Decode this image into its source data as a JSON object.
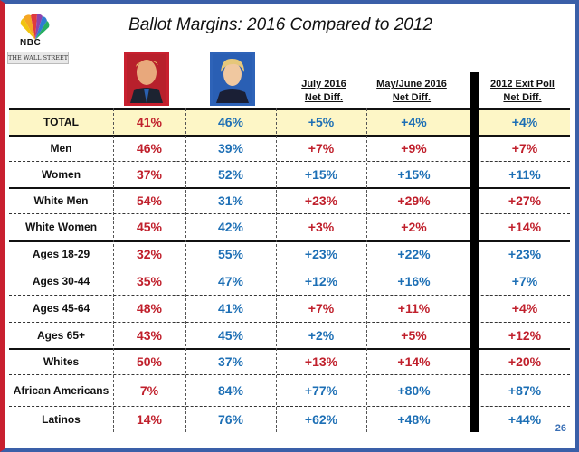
{
  "title": "Ballot Margins: 2016 Compared to 2012",
  "logos": {
    "nbc_text": "NBC",
    "wsj_text": "THE WALL STREET JOURNAL"
  },
  "candidates": [
    {
      "name": "Trump",
      "color": "#c8202f"
    },
    {
      "name": "Clinton",
      "color": "#2e63b8"
    }
  ],
  "page_number": "26",
  "chart_data": {
    "type": "table",
    "title": "Ballot Margins: 2016 Compared to 2012",
    "columns": [
      {
        "id": "trump",
        "label": ""
      },
      {
        "id": "clinton",
        "label": ""
      },
      {
        "id": "july",
        "label_line1": "July 2016",
        "label_line2": "Net Diff."
      },
      {
        "id": "mayjune",
        "label_line1": "May/June 2016",
        "label_line2": "Net Diff."
      },
      {
        "id": "exit2012",
        "label_line1": "2012 Exit Poll",
        "label_line2": "Net Diff."
      }
    ],
    "rows": [
      {
        "group": "TOTAL",
        "trump": "41%",
        "clinton": "46%",
        "july": "+5%",
        "mayjune": "+4%",
        "exit2012": "+4%",
        "july_party": "D",
        "mayjune_party": "D",
        "exit2012_party": "D"
      },
      {
        "group": "Men",
        "trump": "46%",
        "clinton": "39%",
        "july": "+7%",
        "mayjune": "+9%",
        "exit2012": "+7%",
        "july_party": "R",
        "mayjune_party": "R",
        "exit2012_party": "R"
      },
      {
        "group": "Women",
        "trump": "37%",
        "clinton": "52%",
        "july": "+15%",
        "mayjune": "+15%",
        "exit2012": "+11%",
        "july_party": "D",
        "mayjune_party": "D",
        "exit2012_party": "D"
      },
      {
        "group": "White Men",
        "trump": "54%",
        "clinton": "31%",
        "july": "+23%",
        "mayjune": "+29%",
        "exit2012": "+27%",
        "july_party": "R",
        "mayjune_party": "R",
        "exit2012_party": "R"
      },
      {
        "group": "White Women",
        "trump": "45%",
        "clinton": "42%",
        "july": "+3%",
        "mayjune": "+2%",
        "exit2012": "+14%",
        "july_party": "R",
        "mayjune_party": "R",
        "exit2012_party": "R"
      },
      {
        "group": "Ages 18-29",
        "trump": "32%",
        "clinton": "55%",
        "july": "+23%",
        "mayjune": "+22%",
        "exit2012": "+23%",
        "july_party": "D",
        "mayjune_party": "D",
        "exit2012_party": "D"
      },
      {
        "group": "Ages 30-44",
        "trump": "35%",
        "clinton": "47%",
        "july": "+12%",
        "mayjune": "+16%",
        "exit2012": "+7%",
        "july_party": "D",
        "mayjune_party": "D",
        "exit2012_party": "D"
      },
      {
        "group": "Ages 45-64",
        "trump": "48%",
        "clinton": "41%",
        "july": "+7%",
        "mayjune": "+11%",
        "exit2012": "+4%",
        "july_party": "R",
        "mayjune_party": "R",
        "exit2012_party": "R"
      },
      {
        "group": "Ages 65+",
        "trump": "43%",
        "clinton": "45%",
        "july": "+2%",
        "mayjune": "+5%",
        "exit2012": "+12%",
        "july_party": "D",
        "mayjune_party": "R",
        "exit2012_party": "R"
      },
      {
        "group": "Whites",
        "trump": "50%",
        "clinton": "37%",
        "july": "+13%",
        "mayjune": "+14%",
        "exit2012": "+20%",
        "july_party": "R",
        "mayjune_party": "R",
        "exit2012_party": "R"
      },
      {
        "group": "African Americans",
        "trump": "7%",
        "clinton": "84%",
        "july": "+77%",
        "mayjune": "+80%",
        "exit2012": "+87%",
        "july_party": "D",
        "mayjune_party": "D",
        "exit2012_party": "D"
      },
      {
        "group": "Latinos",
        "trump": "14%",
        "clinton": "76%",
        "july": "+62%",
        "mayjune": "+48%",
        "exit2012": "+44%",
        "july_party": "D",
        "mayjune_party": "D",
        "exit2012_party": "D"
      }
    ],
    "colors": {
      "R": "#c0202c",
      "D": "#1d6fb5"
    }
  }
}
